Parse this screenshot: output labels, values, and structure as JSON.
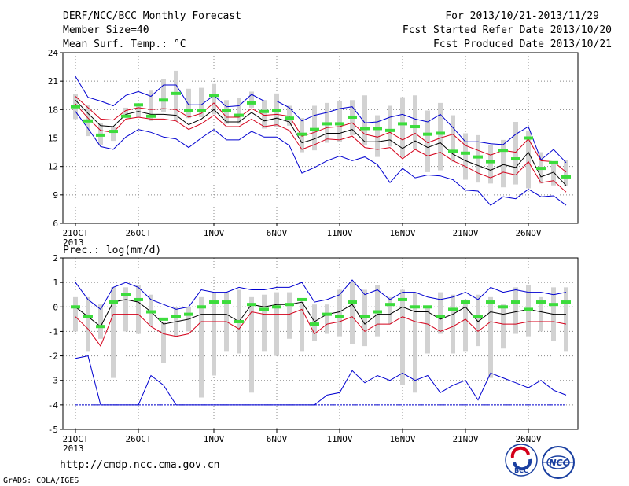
{
  "header": {
    "title": "DERF/NCC/BCC Monthly Forecast",
    "member_size": "Member Size=40",
    "variable": "Mean Surf. Temp.: °C",
    "period": "For 2013/10/21-2013/11/29",
    "start_date": "Fcst Started Refer Date 2013/10/20",
    "produced_date": "Fcst Produced Date 2013/10/21"
  },
  "footer": {
    "url": "http://cmdp.ncc.cma.gov.cn",
    "credit": "GrADS: COLA/IGES",
    "logo_left": "BCC",
    "logo_right": "NCC"
  },
  "colors": {
    "box": "#d2d2d2",
    "median": "#3cdc3c",
    "mean": "#000000",
    "spread": "#d4001a",
    "extreme": "#0000d0",
    "grid": "#888888"
  },
  "x_ticks": [
    {
      "label": "21OCT",
      "sub": "2013"
    },
    {
      "label": "26OCT",
      "sub": ""
    },
    {
      "label": "1NOV",
      "sub": ""
    },
    {
      "label": "6NOV",
      "sub": ""
    },
    {
      "label": "11NOV",
      "sub": ""
    },
    {
      "label": "16NOV",
      "sub": ""
    },
    {
      "label": "21NOV",
      "sub": ""
    },
    {
      "label": "26NOV",
      "sub": ""
    }
  ],
  "chart_data": [
    {
      "type": "line",
      "title": "Mean Surf. Temp.: °C",
      "x": [
        "2013-10-21",
        "2013-10-22",
        "2013-10-23",
        "2013-10-24",
        "2013-10-25",
        "2013-10-26",
        "2013-10-27",
        "2013-10-28",
        "2013-10-29",
        "2013-10-30",
        "2013-10-31",
        "2013-11-01",
        "2013-11-02",
        "2013-11-03",
        "2013-11-04",
        "2013-11-05",
        "2013-11-06",
        "2013-11-07",
        "2013-11-08",
        "2013-11-09",
        "2013-11-10",
        "2013-11-11",
        "2013-11-12",
        "2013-11-13",
        "2013-11-14",
        "2013-11-15",
        "2013-11-16",
        "2013-11-17",
        "2013-11-18",
        "2013-11-19",
        "2013-11-20",
        "2013-11-21",
        "2013-11-22",
        "2013-11-23",
        "2013-11-24",
        "2013-11-25",
        "2013-11-26",
        "2013-11-27",
        "2013-11-28",
        "2013-11-29"
      ],
      "ylim": [
        6,
        24
      ],
      "yticks": [
        6,
        9,
        12,
        15,
        18,
        21,
        24
      ],
      "grid": true,
      "box_low": [
        17.0,
        15.2,
        14.3,
        14.7,
        17.3,
        17.2,
        16.8,
        17.7,
        16.8,
        17.1,
        17.2,
        17.5,
        16.5,
        16.5,
        18.2,
        16.0,
        16.2,
        16.3,
        13.5,
        13.7,
        14.5,
        14.6,
        15.3,
        14.2,
        13.0,
        14.1,
        13.0,
        13.8,
        11.4,
        11.6,
        12.5,
        10.6,
        10.3,
        10.2,
        9.8,
        10.1,
        9.7,
        10.2,
        10.0,
        10.0
      ],
      "box_high": [
        19.6,
        18.5,
        16.6,
        16.2,
        18.2,
        18.6,
        20.0,
        21.2,
        22.1,
        20.2,
        20.3,
        20.7,
        19.0,
        19.2,
        19.9,
        19.0,
        19.7,
        18.4,
        17.1,
        18.4,
        18.7,
        18.9,
        19.0,
        19.5,
        17.4,
        18.4,
        19.3,
        19.5,
        17.9,
        18.7,
        17.4,
        15.5,
        15.3,
        14.3,
        14.8,
        16.7,
        15.8,
        13.5,
        12.5,
        12.7
      ],
      "series": [
        {
          "name": "",
          "role": "extreme-max",
          "values": [
            21.5,
            19.3,
            18.9,
            18.4,
            19.5,
            19.9,
            19.4,
            20.6,
            20.6,
            18.5,
            18.5,
            19.5,
            18.3,
            18.4,
            19.6,
            18.9,
            18.9,
            18.2,
            16.8,
            17.4,
            17.7,
            18.1,
            18.3,
            16.6,
            16.7,
            17.2,
            17.5,
            17.0,
            16.7,
            17.5,
            16.1,
            14.6,
            14.6,
            14.4,
            14.3,
            15.4,
            16.2,
            12.7,
            13.8,
            12.4
          ]
        },
        {
          "name": "",
          "role": "spread-upper",
          "values": [
            19.4,
            18.2,
            17.0,
            16.9,
            17.9,
            18.2,
            18.0,
            18.1,
            18.0,
            17.2,
            17.6,
            18.7,
            17.2,
            17.2,
            18.1,
            17.4,
            17.5,
            17.3,
            15.2,
            15.6,
            16.1,
            16.2,
            16.6,
            15.4,
            15.1,
            15.6,
            14.8,
            15.5,
            14.5,
            15.0,
            15.4,
            14.2,
            13.7,
            13.2,
            13.7,
            13.5,
            14.9,
            12.6,
            12.5,
            11.4
          ]
        },
        {
          "name": "",
          "role": "mean",
          "values": [
            19.0,
            17.6,
            16.3,
            16.2,
            17.5,
            17.8,
            17.5,
            17.5,
            17.4,
            16.4,
            17.0,
            18.0,
            16.7,
            16.7,
            17.7,
            16.8,
            17.1,
            16.7,
            14.5,
            14.9,
            15.5,
            15.5,
            15.9,
            14.6,
            14.6,
            14.8,
            13.9,
            14.7,
            14.0,
            14.5,
            13.3,
            12.6,
            12.1,
            11.6,
            12.2,
            11.9,
            13.5,
            10.9,
            11.4,
            10.0
          ]
        },
        {
          "name": "",
          "role": "spread-lower",
          "values": [
            18.6,
            17.1,
            15.8,
            15.6,
            17.0,
            17.2,
            17.0,
            17.0,
            16.8,
            15.9,
            16.5,
            17.4,
            16.2,
            16.2,
            17.0,
            16.2,
            16.4,
            15.8,
            13.8,
            14.3,
            14.9,
            14.8,
            15.2,
            14.0,
            13.8,
            14.0,
            12.8,
            13.8,
            13.1,
            13.5,
            12.6,
            12.0,
            11.3,
            10.8,
            11.4,
            11.1,
            12.5,
            10.3,
            10.5,
            9.3
          ]
        },
        {
          "name": "",
          "role": "extreme-min",
          "values": [
            17.8,
            16.0,
            14.1,
            13.8,
            15.1,
            15.9,
            15.6,
            15.1,
            14.9,
            14.0,
            15.0,
            15.9,
            14.8,
            14.8,
            15.7,
            15.1,
            15.1,
            14.2,
            11.3,
            11.9,
            12.6,
            13.1,
            12.6,
            13.0,
            12.2,
            10.3,
            11.8,
            10.8,
            11.1,
            11.0,
            10.6,
            9.5,
            9.4,
            7.9,
            8.8,
            8.6,
            9.6,
            8.8,
            8.9,
            7.9
          ]
        },
        {
          "name": "",
          "role": "ensemble-median",
          "values": [
            18.3,
            16.8,
            15.3,
            15.7,
            17.3,
            18.5,
            17.3,
            19.0,
            19.7,
            17.9,
            17.9,
            19.5,
            17.9,
            17.4,
            18.7,
            17.8,
            17.9,
            17.1,
            15.4,
            15.9,
            16.5,
            16.5,
            17.2,
            16.0,
            16.0,
            15.8,
            16.5,
            16.2,
            15.4,
            15.5,
            13.6,
            13.4,
            13.0,
            12.5,
            13.7,
            12.8,
            15.0,
            11.8,
            12.4,
            10.9
          ]
        }
      ]
    },
    {
      "type": "line",
      "title": "Prec.: log(mm/d)",
      "x": [
        "2013-10-21",
        "2013-10-22",
        "2013-10-23",
        "2013-10-24",
        "2013-10-25",
        "2013-10-26",
        "2013-10-27",
        "2013-10-28",
        "2013-10-29",
        "2013-10-30",
        "2013-10-31",
        "2013-11-01",
        "2013-11-02",
        "2013-11-03",
        "2013-11-04",
        "2013-11-05",
        "2013-11-06",
        "2013-11-07",
        "2013-11-08",
        "2013-11-09",
        "2013-11-10",
        "2013-11-11",
        "2013-11-12",
        "2013-11-13",
        "2013-11-14",
        "2013-11-15",
        "2013-11-16",
        "2013-11-17",
        "2013-11-18",
        "2013-11-19",
        "2013-11-20",
        "2013-11-21",
        "2013-11-22",
        "2013-11-23",
        "2013-11-24",
        "2013-11-25",
        "2013-11-26",
        "2013-11-27",
        "2013-11-28",
        "2013-11-29"
      ],
      "ylim": [
        -5,
        2
      ],
      "yticks": [
        -5,
        -4,
        -3,
        -2,
        -1,
        0,
        1,
        2
      ],
      "grid": true,
      "box_low": [
        -1.0,
        -1.8,
        -1.3,
        -2.9,
        -1.0,
        -1.1,
        -0.8,
        -2.3,
        -1.2,
        -1.0,
        -3.7,
        -2.8,
        -1.8,
        -1.9,
        -3.5,
        -1.8,
        -2.0,
        -1.3,
        -1.8,
        -1.4,
        -1.1,
        -1.2,
        -1.5,
        -1.6,
        -1.2,
        -0.7,
        -3.2,
        -3.5,
        -1.9,
        -1.1,
        -1.9,
        -1.8,
        -1.6,
        -2.9,
        -1.7,
        -1.1,
        -1.2,
        -1.0,
        -1.4,
        -1.8
      ],
      "box_high": [
        0.4,
        0.4,
        0.1,
        0.8,
        0.8,
        0.9,
        0.5,
        -0.6,
        0.0,
        0.0,
        0.4,
        0.6,
        0.6,
        0.7,
        0.4,
        0.5,
        0.6,
        0.6,
        0.2,
        0.1,
        0.1,
        0.7,
        1.0,
        0.7,
        0.9,
        0.4,
        0.7,
        0.6,
        0.0,
        0.6,
        0.5,
        0.3,
        0.5,
        0.4,
        0.1,
        0.8,
        0.9,
        0.4,
        0.8,
        0.8
      ],
      "series": [
        {
          "name": "",
          "role": "extreme-max",
          "values": [
            1.0,
            0.3,
            -0.1,
            0.8,
            1.0,
            0.8,
            0.3,
            0.1,
            -0.1,
            0.0,
            0.7,
            0.6,
            0.6,
            0.8,
            0.7,
            0.7,
            0.8,
            0.8,
            1.0,
            0.2,
            0.3,
            0.5,
            1.1,
            0.5,
            0.7,
            0.3,
            0.6,
            0.6,
            0.4,
            0.3,
            0.4,
            0.6,
            0.3,
            0.8,
            0.6,
            0.7,
            0.6,
            0.6,
            0.5,
            0.6
          ]
        },
        {
          "name": "",
          "role": "mean",
          "values": [
            0.0,
            -0.4,
            -0.8,
            0.2,
            0.3,
            0.2,
            -0.2,
            -0.7,
            -0.6,
            -0.5,
            -0.3,
            -0.3,
            -0.3,
            -0.6,
            0.1,
            0.0,
            0.1,
            0.1,
            0.2,
            -0.6,
            -0.3,
            -0.2,
            0.1,
            -0.7,
            -0.3,
            -0.3,
            0.0,
            -0.2,
            -0.2,
            -0.5,
            -0.3,
            0.0,
            -0.6,
            -0.2,
            -0.3,
            -0.2,
            -0.1,
            -0.2,
            -0.3,
            -0.3
          ]
        },
        {
          "name": "",
          "role": "spread-lower",
          "values": [
            -0.4,
            -0.9,
            -1.6,
            -0.3,
            -0.3,
            -0.3,
            -0.8,
            -1.1,
            -1.2,
            -1.1,
            -0.6,
            -0.6,
            -0.6,
            -0.9,
            -0.2,
            -0.3,
            -0.3,
            -0.3,
            -0.1,
            -1.1,
            -0.7,
            -0.6,
            -0.4,
            -1.0,
            -0.7,
            -0.7,
            -0.4,
            -0.6,
            -0.7,
            -1.0,
            -0.8,
            -0.5,
            -1.0,
            -0.6,
            -0.7,
            -0.7,
            -0.6,
            -0.6,
            -0.6,
            -0.7
          ]
        },
        {
          "name": "",
          "role": "extreme-min",
          "values": [
            -2.1,
            -2.0,
            -4.0,
            -4.0,
            -4.0,
            -4.0,
            -2.8,
            -3.2,
            -4.0,
            -4.0,
            -4.0,
            -4.0,
            -4.0,
            -4.0,
            -4.0,
            -4.0,
            -4.0,
            -4.0,
            -4.0,
            -4.0,
            -3.6,
            -3.5,
            -2.6,
            -3.1,
            -2.8,
            -3.0,
            -2.7,
            -3.0,
            -2.8,
            -3.5,
            -3.2,
            -3.0,
            -3.8,
            -2.7,
            -2.9,
            -3.1,
            -3.3,
            -3.0,
            -3.4,
            -3.6
          ]
        },
        {
          "name": "",
          "role": "lower-floor",
          "values": [
            -4.0,
            -4.0,
            -4.0,
            -4.0,
            -4.0,
            -4.0,
            -4.0,
            -4.0,
            -4.0,
            -4.0,
            -4.0,
            -4.0,
            -4.0,
            -4.0,
            -4.0,
            -4.0,
            -4.0,
            -4.0,
            -4.0,
            -4.0,
            -4.0,
            -4.0,
            -4.0,
            -4.0,
            -4.0,
            -4.0,
            -4.0,
            -4.0,
            -4.0,
            -4.0,
            -4.0,
            -4.0,
            -4.0,
            -4.0,
            -4.0,
            -4.0,
            -4.0,
            -4.0,
            -4.0,
            -4.0
          ]
        },
        {
          "name": "",
          "role": "ensemble-median",
          "values": [
            0.0,
            -0.4,
            -0.8,
            0.2,
            0.5,
            0.3,
            -0.2,
            -0.5,
            -0.4,
            -0.3,
            0.0,
            0.2,
            0.2,
            -0.6,
            0.1,
            -0.1,
            0.0,
            0.1,
            0.3,
            -0.7,
            -0.3,
            -0.4,
            0.2,
            -0.4,
            -0.2,
            0.1,
            0.3,
            0.0,
            0.0,
            -0.4,
            -0.1,
            0.2,
            -0.4,
            0.2,
            0.0,
            0.2,
            -0.1,
            0.2,
            0.1,
            0.2
          ]
        }
      ]
    }
  ]
}
